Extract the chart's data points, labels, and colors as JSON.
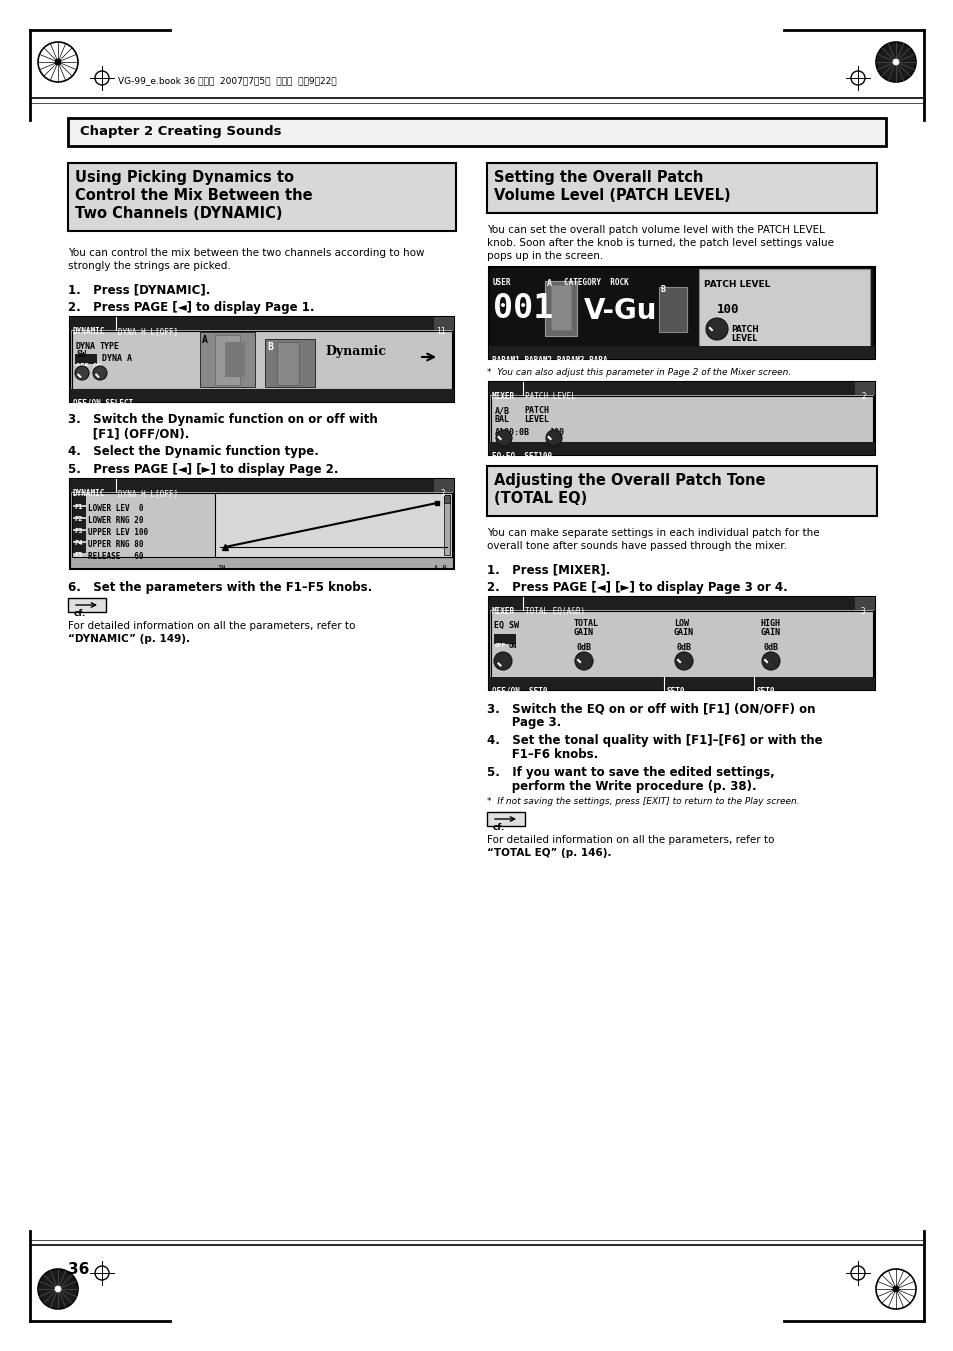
{
  "bg_color": "#ffffff",
  "page_width": 9.54,
  "page_height": 13.51,
  "dpi": 100,
  "header_text": "VG-99_e.book 36 ページ  2007年7月5日  木曜日  午前9時22分",
  "chapter_box_text": "Chapter 2 Creating Sounds",
  "left_title_lines": [
    "Using Picking Dynamics to",
    "Control the Mix Between the",
    "Two Channels (DYNAMIC)"
  ],
  "left_intro": [
    "You can control the mix between the two channels according to how",
    "strongly the strings are picked."
  ],
  "left_step1": "1.   Press [DYNAMIC].",
  "left_step2": "2.   Press PAGE [◄] to display Page 1.",
  "left_step3a": "3.   Switch the Dynamic function on or off with",
  "left_step3b": "      [F1] (OFF/ON).",
  "left_step4": "4.   Select the Dynamic function type.",
  "left_step5": "5.   Press PAGE [◄] [►] to display Page 2.",
  "left_step6": "6.   Set the parameters with the F1–F5 knobs.",
  "left_cf": "For detailed information on all the parameters, refer to",
  "left_cf2": "“DYNAMIC” (p. 149).",
  "right_title1_lines": [
    "Setting the Overall Patch",
    "Volume Level (PATCH LEVEL)"
  ],
  "right_intro1": [
    "You can set the overall patch volume level with the PATCH LEVEL",
    "knob. Soon after the knob is turned, the patch level settings value",
    "pops up in the screen."
  ],
  "right_note1": "*  You can also adjust this parameter in Page 2 of the Mixer screen.",
  "right_title2_lines": [
    "Adjusting the Overall Patch Tone",
    "(TOTAL EQ)"
  ],
  "right_intro2": [
    "You can make separate settings in each individual patch for the",
    "overall tone after sounds have passed through the mixer."
  ],
  "right_step1": "1.   Press [MIXER].",
  "right_step2": "2.   Press PAGE [◄] [►] to display Page 3 or 4.",
  "right_step3a": "3.   Switch the EQ on or off with [F1] (ON/OFF) on",
  "right_step3b": "      Page 3.",
  "right_step4a": "4.   Set the tonal quality with [F1]–[F6] or with the",
  "right_step4b": "      F1–F6 knobs.",
  "right_step5a": "5.   If you want to save the edited settings,",
  "right_step5b": "      perform the Write procedure (p. 38).",
  "right_note2": "*  If not saving the settings, press [EXIT] to return to the Play screen.",
  "right_cf": "For detailed information on all the parameters, refer to",
  "right_cf2": "“TOTAL EQ” (p. 146).",
  "page_number": "36"
}
